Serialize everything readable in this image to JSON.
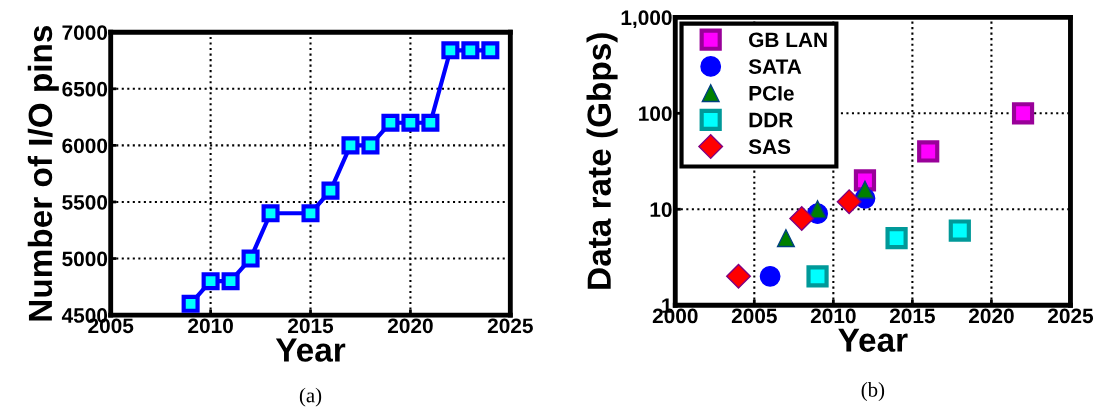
{
  "chart_data": [
    {
      "type": "line",
      "xlabel": "Year",
      "ylabel": "Number of I/O pins",
      "annotations": [
        "(a)"
      ],
      "x": [
        2009,
        2010,
        2011,
        2012,
        2013,
        2015,
        2016,
        2017,
        2018,
        2019,
        2020,
        2021,
        2022,
        2023,
        2024
      ],
      "series": [
        {
          "color": "#0000ff",
          "values": [
            4600,
            4800,
            4800,
            5000,
            5400,
            5400,
            5600,
            6000,
            6000,
            6200,
            6200,
            6200,
            6840,
            6840,
            6840
          ]
        }
      ],
      "marker": "square",
      "line_style": "solid",
      "grid": true,
      "xlim": [
        2005,
        2025
      ],
      "xticks": [
        2005,
        2010,
        2015,
        2020,
        2025
      ],
      "ylim": [
        4500,
        7000
      ],
      "yticks": [
        4500,
        5000,
        5500,
        6000,
        6500,
        7000
      ]
    },
    {
      "type": "scatter",
      "xlabel": "Year",
      "ylabel": "Data rate (Gbps)",
      "annotations": [
        "(b)"
      ],
      "log": "y",
      "series": [
        {
          "name": "GB LAN",
          "color": "#ff00ff",
          "marker": "square",
          "x": [
            2012,
            2016,
            2022
          ],
          "values": [
            20,
            40,
            100
          ]
        },
        {
          "name": "SATA",
          "color": "#0000ff",
          "marker": "circle",
          "x": [
            2006,
            2009,
            2012
          ],
          "values": [
            2,
            9,
            13
          ]
        },
        {
          "name": "PCIe",
          "color": "#008000",
          "marker": "triangle",
          "x": [
            2007,
            2009,
            2012
          ],
          "values": [
            5,
            10,
            16
          ]
        },
        {
          "name": "DDR",
          "color": "#00ffff",
          "marker": "square",
          "x": [
            2009,
            2014,
            2018
          ],
          "values": [
            2,
            5,
            6
          ]
        },
        {
          "name": "SAS",
          "color": "#ff0000",
          "marker": "diamond",
          "x": [
            2004,
            2008,
            2011
          ],
          "values": [
            2,
            8,
            12
          ]
        }
      ],
      "grid": true,
      "legend": "top left",
      "xlim": [
        2000,
        2025
      ],
      "xticks": [
        2000,
        2005,
        2010,
        2015,
        2020,
        2025
      ],
      "ylim": [
        1,
        1000
      ],
      "yticks": [
        1,
        10,
        100,
        {
          "value": 1000,
          "label": "1,000"
        }
      ]
    }
  ]
}
